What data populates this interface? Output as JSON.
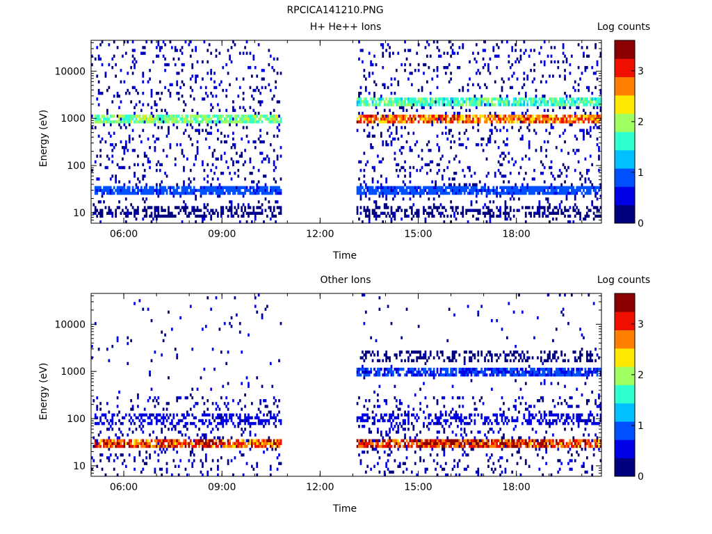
{
  "page_title": "RPCICA141210.PNG",
  "colors": {
    "colormap": [
      "#00007f",
      "#0000e6",
      "#0050ff",
      "#00c0ff",
      "#30ffcf",
      "#a0ff60",
      "#ffe800",
      "#ff8000",
      "#f01000",
      "#8b0000"
    ]
  },
  "chart_data": [
    {
      "type": "heatmap",
      "title": "H+ He++ Ions",
      "xlabel": "Time",
      "ylabel": "Energy (eV)",
      "x_ticks": [
        "06:00",
        "09:00",
        "12:00",
        "15:00",
        "18:00"
      ],
      "x_tick_hours": [
        6,
        9,
        12,
        15,
        18
      ],
      "xlim_hours": [
        5.0,
        20.6
      ],
      "y_scale": "log",
      "y_ticks": [
        "10",
        "100",
        "1000",
        "10000"
      ],
      "y_tick_values": [
        10,
        100,
        1000,
        10000
      ],
      "ylim": [
        6,
        45000
      ],
      "colorbar": {
        "label": "Log counts",
        "ticks": [
          "0",
          "1",
          "2",
          "3"
        ],
        "tick_values": [
          0,
          1,
          2,
          3
        ],
        "range": [
          0,
          3.6
        ]
      },
      "data_gaps_hours": [
        [
          10.8,
          13.1
        ]
      ],
      "features": [
        {
          "energy_eV": 1000,
          "hours": [
            5.1,
            10.8
          ],
          "log_counts": 2.0,
          "note": "band"
        },
        {
          "energy_eV": 1000,
          "hours": [
            13.1,
            20.6
          ],
          "log_counts": 3.0,
          "note": "band"
        },
        {
          "energy_eV": 2200,
          "hours": [
            13.1,
            20.6
          ],
          "log_counts": 1.8,
          "note": "band"
        },
        {
          "energy_eV": 30,
          "hours": [
            5.1,
            20.6
          ],
          "log_counts": 0.9,
          "note": "band"
        },
        {
          "energy_eV": 10,
          "hours": [
            5.1,
            20.6
          ],
          "log_counts": 0.3,
          "note": "sparse"
        }
      ]
    },
    {
      "type": "heatmap",
      "title": "Other Ions",
      "xlabel": "Time",
      "ylabel": "Energy (eV)",
      "x_ticks": [
        "06:00",
        "09:00",
        "12:00",
        "15:00",
        "18:00"
      ],
      "x_tick_hours": [
        6,
        9,
        12,
        15,
        18
      ],
      "xlim_hours": [
        5.0,
        20.6
      ],
      "y_scale": "log",
      "y_ticks": [
        "10",
        "100",
        "1000",
        "10000"
      ],
      "y_tick_values": [
        10,
        100,
        1000,
        10000
      ],
      "ylim": [
        6,
        45000
      ],
      "colorbar": {
        "label": "Log counts",
        "ticks": [
          "0",
          "1",
          "2",
          "3"
        ],
        "tick_values": [
          0,
          1,
          2,
          3
        ],
        "range": [
          0,
          3.6
        ]
      },
      "data_gaps_hours": [
        [
          10.8,
          13.1
        ]
      ],
      "features": [
        {
          "energy_eV": 28,
          "hours": [
            5.1,
            10.8
          ],
          "log_counts": 3.2,
          "note": "band"
        },
        {
          "energy_eV": 28,
          "hours": [
            13.1,
            20.6
          ],
          "log_counts": 3.3,
          "note": "band"
        },
        {
          "energy_eV": 100,
          "hours": [
            5.1,
            20.6
          ],
          "log_counts": 0.5,
          "note": "sparse"
        },
        {
          "energy_eV": 1000,
          "hours": [
            13.1,
            20.6
          ],
          "log_counts": 0.8,
          "note": "band"
        },
        {
          "energy_eV": 2200,
          "hours": [
            13.1,
            20.6
          ],
          "log_counts": 0.3,
          "note": "sparse"
        }
      ]
    }
  ]
}
